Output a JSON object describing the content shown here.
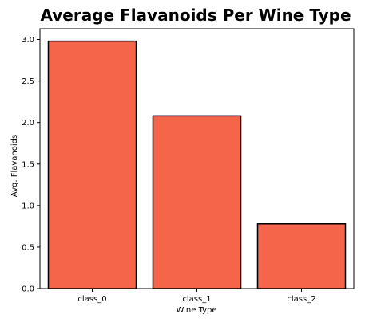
{
  "chart_data": {
    "type": "bar",
    "title": "Average Flavanoids Per Wine Type",
    "xlabel": "Wine Type",
    "ylabel": "Avg. Flavanoids",
    "categories": [
      "class_0",
      "class_1",
      "class_2"
    ],
    "values": [
      2.98,
      2.08,
      0.78
    ],
    "ylim": [
      0,
      3.13
    ],
    "yticks": [
      0.0,
      0.5,
      1.0,
      1.5,
      2.0,
      2.5,
      3.0
    ],
    "ytick_labels": [
      "0.0",
      "0.5",
      "1.0",
      "1.5",
      "2.0",
      "2.5",
      "3.0"
    ],
    "grid": false,
    "bar_color": "#f4654a",
    "bar_edge_color": "#000000"
  }
}
